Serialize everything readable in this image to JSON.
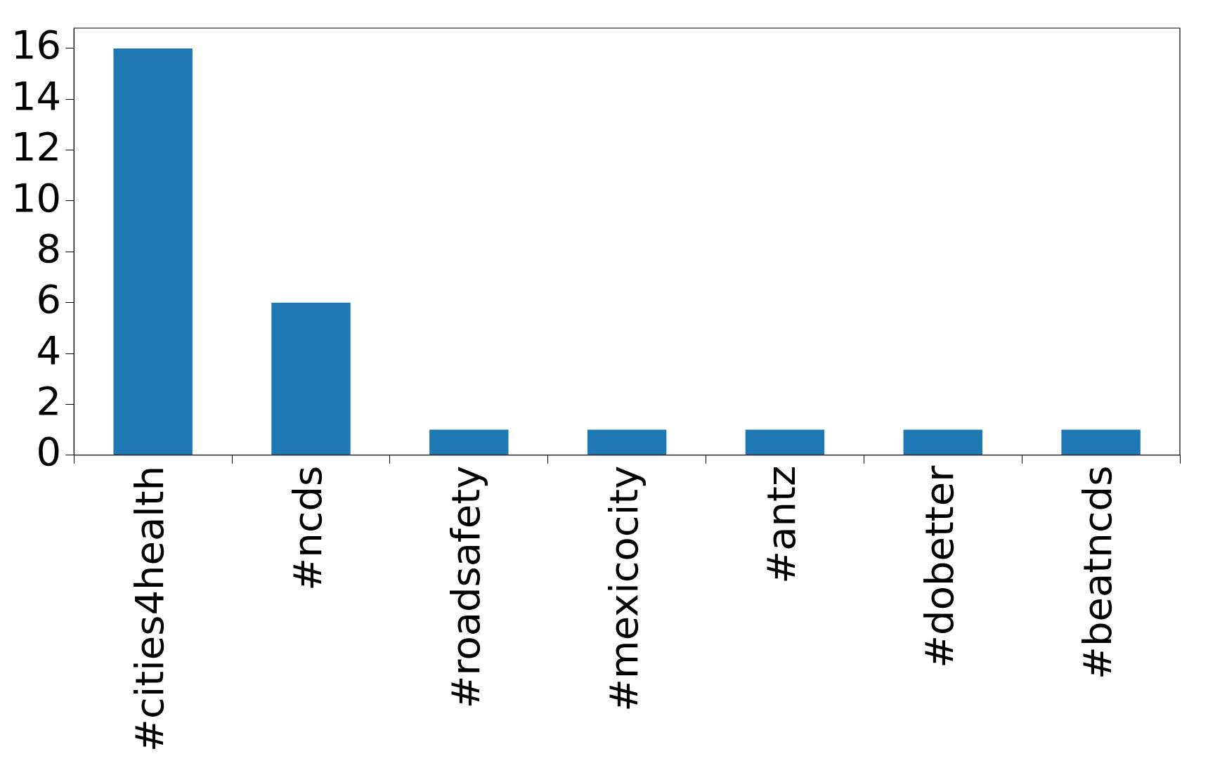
{
  "chart_data": {
    "type": "bar",
    "categories": [
      "#cities4health",
      "#ncds",
      "#roadsafety",
      "#mexicocity",
      "#antz",
      "#dobetter",
      "#beatncds"
    ],
    "values": [
      16,
      6,
      1,
      1,
      1,
      1,
      1
    ],
    "color": "#1f77b4",
    "ylim": [
      0,
      16.8
    ],
    "yticks": [
      0,
      2,
      4,
      6,
      8,
      10,
      12,
      14,
      16
    ],
    "grid": false,
    "legend": false
  }
}
